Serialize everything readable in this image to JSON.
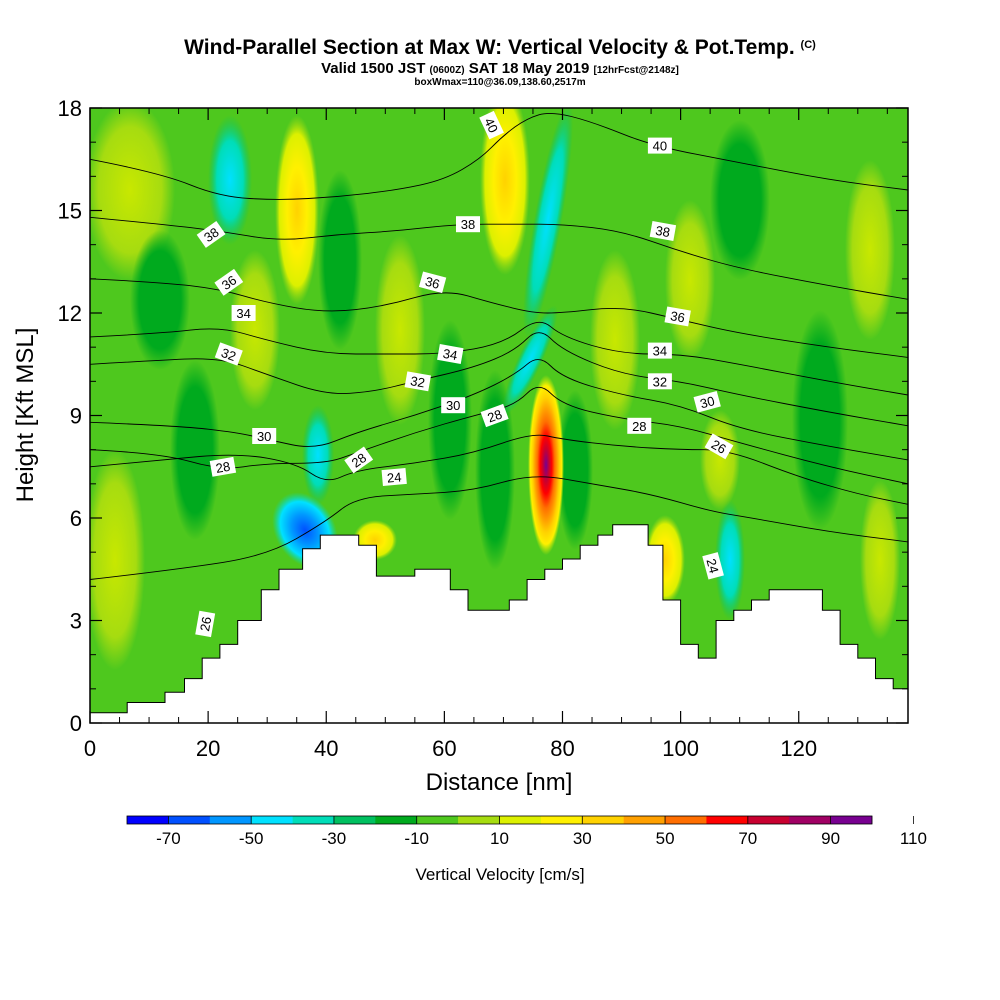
{
  "header": {
    "title": "Wind-Parallel Section at Max W: Vertical Velocity & Pot.Temp.",
    "title_mark": "(C)",
    "subtitle_a": "Valid 1500 JST",
    "subtitle_b": "(0600Z)",
    "subtitle_c": "SAT 18 May 2019",
    "subtitle_d": "[12hrFcst@2148z]",
    "subtitle2": "boxWmax=110@36.09,138.60,2517m"
  },
  "chart_data": {
    "type": "heatmap",
    "xlabel": "Distance [nm]",
    "ylabel": "Height [Kft MSL]",
    "xlim": [
      0,
      138.5
    ],
    "ylim": [
      0,
      18
    ],
    "xticks": [
      "0",
      "20",
      "40",
      "60",
      "80",
      "100",
      "120"
    ],
    "xtick_values": [
      0,
      20,
      40,
      60,
      80,
      100,
      120
    ],
    "yticks": [
      "0",
      "3",
      "6",
      "9",
      "12",
      "15",
      "18"
    ],
    "ytick_values": [
      0,
      3,
      6,
      9,
      12,
      15,
      18
    ],
    "colorbar": {
      "label": "Vertical Velocity [cm/s]",
      "tick_labels": [
        "-70",
        "-50",
        "-30",
        "-10",
        "10",
        "30",
        "50",
        "70",
        "90",
        "110"
      ],
      "colors": [
        "#0000ff",
        "#0050ff",
        "#0096ff",
        "#00e1ff",
        "#00ddb8",
        "#00c060",
        "#00aa1e",
        "#4ec81e",
        "#a6dc10",
        "#dcf000",
        "#fff000",
        "#ffd200",
        "#ffa000",
        "#ff6e00",
        "#ff0000",
        "#c80030",
        "#a00064",
        "#780090"
      ]
    },
    "terrain_kft": [
      [
        0,
        0.3
      ],
      [
        6.3,
        0.3
      ],
      [
        6.3,
        0.6
      ],
      [
        12.7,
        0.6
      ],
      [
        12.7,
        0.9
      ],
      [
        16,
        0.9
      ],
      [
        16,
        1.3
      ],
      [
        19,
        1.3
      ],
      [
        19,
        1.9
      ],
      [
        22,
        1.9
      ],
      [
        22,
        2.3
      ],
      [
        25,
        2.3
      ],
      [
        25,
        3
      ],
      [
        29,
        3
      ],
      [
        29,
        3.9
      ],
      [
        32,
        3.9
      ],
      [
        32,
        4.5
      ],
      [
        36,
        4.5
      ],
      [
        36,
        5.1
      ],
      [
        39,
        5.1
      ],
      [
        39,
        5.5
      ],
      [
        40.5,
        5.5
      ],
      [
        40.5,
        5.5
      ],
      [
        45.5,
        5.5
      ],
      [
        45.5,
        5.2
      ],
      [
        48.5,
        5.2
      ],
      [
        48.5,
        4.3
      ],
      [
        55,
        4.3
      ],
      [
        55,
        4.5
      ],
      [
        61,
        4.5
      ],
      [
        61,
        3.9
      ],
      [
        64,
        3.9
      ],
      [
        64,
        3.3
      ],
      [
        71,
        3.3
      ],
      [
        71,
        3.6
      ],
      [
        74,
        3.6
      ],
      [
        74,
        4.2
      ],
      [
        77,
        4.2
      ],
      [
        77,
        4.5
      ],
      [
        80,
        4.5
      ],
      [
        80,
        4.8
      ],
      [
        83,
        4.8
      ],
      [
        83,
        5.2
      ],
      [
        86,
        5.2
      ],
      [
        86,
        5.5
      ],
      [
        88.5,
        5.5
      ],
      [
        88.5,
        5.8
      ],
      [
        94.5,
        5.8
      ],
      [
        94.5,
        5.2
      ],
      [
        97,
        5.2
      ],
      [
        97,
        3.6
      ],
      [
        100,
        3.6
      ],
      [
        100,
        2.3
      ],
      [
        103,
        2.3
      ],
      [
        103,
        1.9
      ],
      [
        106,
        1.9
      ],
      [
        106,
        3
      ],
      [
        109,
        3
      ],
      [
        109,
        3.3
      ],
      [
        112,
        3.3
      ],
      [
        112,
        3.6
      ],
      [
        115,
        3.6
      ],
      [
        115,
        3.9
      ],
      [
        124,
        3.9
      ],
      [
        124,
        3.3
      ],
      [
        127,
        3.3
      ],
      [
        127,
        2.3
      ],
      [
        130,
        2.3
      ],
      [
        130,
        1.9
      ],
      [
        133,
        1.9
      ],
      [
        133,
        1.3
      ],
      [
        136,
        1.3
      ],
      [
        136,
        1
      ],
      [
        138.5,
        1
      ]
    ],
    "isentropes": [
      {
        "level": 24,
        "label": "24",
        "points": [
          [
            0,
            4.2
          ],
          [
            15,
            4.5
          ],
          [
            30,
            4.9
          ],
          [
            40,
            5.9
          ],
          [
            45,
            6.6
          ],
          [
            55,
            6.7
          ],
          [
            65,
            6.8
          ],
          [
            75,
            7.3
          ],
          [
            85,
            7.0
          ],
          [
            95,
            6.7
          ],
          [
            105,
            6.2
          ],
          [
            112,
            6.0
          ],
          [
            125,
            5.6
          ],
          [
            138.5,
            5.3
          ]
        ]
      },
      {
        "level": 26,
        "label": "26",
        "points": [
          [
            0,
            7.5
          ],
          [
            12,
            7.7
          ],
          [
            25,
            7.9
          ],
          [
            35,
            7.6
          ],
          [
            40,
            7.0
          ],
          [
            45,
            7.4
          ],
          [
            55,
            7.6
          ],
          [
            65,
            7.9
          ],
          [
            75,
            8.5
          ],
          [
            80,
            8.3
          ],
          [
            90,
            8.1
          ],
          [
            100,
            8.0
          ],
          [
            108,
            8.0
          ],
          [
            120,
            7.2
          ],
          [
            130,
            6.7
          ],
          [
            138.5,
            6.4
          ]
        ]
      },
      {
        "level": 28,
        "label": "28",
        "points": [
          [
            0,
            8.0
          ],
          [
            12,
            7.9
          ],
          [
            22,
            7.4
          ],
          [
            30,
            7.6
          ],
          [
            40,
            7.6
          ],
          [
            45,
            7.9
          ],
          [
            55,
            8.5
          ],
          [
            65,
            9.0
          ],
          [
            72,
            9.3
          ],
          [
            76,
            10.0
          ],
          [
            80,
            9.3
          ],
          [
            90,
            8.9
          ],
          [
            100,
            8.7
          ],
          [
            110,
            8.2
          ],
          [
            125,
            7.5
          ],
          [
            138.5,
            7.0
          ]
        ]
      },
      {
        "level": 30,
        "label": "30",
        "points": [
          [
            0,
            8.8
          ],
          [
            15,
            8.7
          ],
          [
            25,
            8.5
          ],
          [
            30,
            8.3
          ],
          [
            38,
            8.0
          ],
          [
            45,
            8.5
          ],
          [
            55,
            9.0
          ],
          [
            65,
            9.6
          ],
          [
            72,
            10.2
          ],
          [
            76,
            10.8
          ],
          [
            80,
            10.1
          ],
          [
            90,
            9.6
          ],
          [
            100,
            9.3
          ],
          [
            110,
            8.6
          ],
          [
            125,
            8.1
          ],
          [
            138.5,
            7.7
          ]
        ]
      },
      {
        "level": 32,
        "label": "32",
        "points": [
          [
            0,
            10.5
          ],
          [
            10,
            10.6
          ],
          [
            22,
            10.7
          ],
          [
            30,
            10.2
          ],
          [
            40,
            9.6
          ],
          [
            48,
            9.7
          ],
          [
            55,
            10.0
          ],
          [
            65,
            10.4
          ],
          [
            72,
            10.9
          ],
          [
            76,
            11.6
          ],
          [
            80,
            10.9
          ],
          [
            90,
            10.2
          ],
          [
            100,
            10.0
          ],
          [
            110,
            9.6
          ],
          [
            125,
            9.1
          ],
          [
            138.5,
            8.7
          ]
        ]
      },
      {
        "level": 34,
        "label": "34",
        "points": [
          [
            0,
            11.3
          ],
          [
            12,
            11.4
          ],
          [
            22,
            11.6
          ],
          [
            30,
            11.2
          ],
          [
            40,
            10.8
          ],
          [
            50,
            10.8
          ],
          [
            60,
            10.8
          ],
          [
            70,
            11.1
          ],
          [
            76,
            11.9
          ],
          [
            80,
            11.3
          ],
          [
            90,
            10.8
          ],
          [
            100,
            10.8
          ],
          [
            110,
            10.5
          ],
          [
            125,
            10.0
          ],
          [
            138.5,
            9.6
          ]
        ]
      },
      {
        "level": 36,
        "label": "36",
        "points": [
          [
            0,
            13.0
          ],
          [
            12,
            12.9
          ],
          [
            22,
            12.7
          ],
          [
            30,
            12.3
          ],
          [
            40,
            12.0
          ],
          [
            50,
            12.2
          ],
          [
            60,
            12.7
          ],
          [
            68,
            12.3
          ],
          [
            75,
            12.0
          ],
          [
            80,
            12.0
          ],
          [
            90,
            12.2
          ],
          [
            100,
            11.8
          ],
          [
            110,
            11.4
          ],
          [
            125,
            11.0
          ],
          [
            138.5,
            10.7
          ]
        ]
      },
      {
        "level": 38,
        "label": "38",
        "points": [
          [
            0,
            14.8
          ],
          [
            12,
            14.6
          ],
          [
            22,
            14.4
          ],
          [
            32,
            14.1
          ],
          [
            42,
            14.3
          ],
          [
            52,
            14.4
          ],
          [
            62,
            14.6
          ],
          [
            72,
            14.6
          ],
          [
            80,
            14.6
          ],
          [
            90,
            14.4
          ],
          [
            100,
            13.8
          ],
          [
            110,
            13.3
          ],
          [
            125,
            12.8
          ],
          [
            138.5,
            12.4
          ]
        ]
      },
      {
        "level": 40,
        "label": "40",
        "points": [
          [
            0,
            16.5
          ],
          [
            12,
            16.1
          ],
          [
            22,
            15.4
          ],
          [
            32,
            15.3
          ],
          [
            42,
            15.4
          ],
          [
            52,
            15.6
          ],
          [
            60,
            15.9
          ],
          [
            66,
            16.5
          ],
          [
            70,
            17.2
          ],
          [
            74,
            17.7
          ],
          [
            78,
            17.9
          ],
          [
            85,
            17.6
          ],
          [
            95,
            16.9
          ],
          [
            110,
            16.4
          ],
          [
            125,
            15.9
          ],
          [
            138.5,
            15.6
          ]
        ]
      }
    ],
    "isentrope_labels": [
      {
        "label": "26",
        "x": 19.5,
        "y": 2.9,
        "rot": -80
      },
      {
        "label": "28",
        "x": 22.5,
        "y": 7.5,
        "rot": -10
      },
      {
        "label": "30",
        "x": 29.5,
        "y": 8.4,
        "rot": 0
      },
      {
        "label": "32",
        "x": 23.5,
        "y": 10.8,
        "rot": 20
      },
      {
        "label": "34",
        "x": 26.0,
        "y": 12.0,
        "rot": 0
      },
      {
        "label": "36",
        "x": 23.5,
        "y": 12.9,
        "rot": -35
      },
      {
        "label": "38",
        "x": 20.5,
        "y": 14.3,
        "rot": -35
      },
      {
        "label": "28",
        "x": 45.5,
        "y": 7.7,
        "rot": -35
      },
      {
        "label": "24",
        "x": 51.5,
        "y": 7.2,
        "rot": -5
      },
      {
        "label": "32",
        "x": 55.5,
        "y": 10.0,
        "rot": 10
      },
      {
        "label": "30",
        "x": 61.5,
        "y": 9.3,
        "rot": 0
      },
      {
        "label": "28",
        "x": 68.5,
        "y": 9.0,
        "rot": -20
      },
      {
        "label": "34",
        "x": 61.0,
        "y": 10.8,
        "rot": 10
      },
      {
        "label": "36",
        "x": 58.0,
        "y": 12.9,
        "rot": 15
      },
      {
        "label": "38",
        "x": 64.0,
        "y": 14.6,
        "rot": 0
      },
      {
        "label": "40",
        "x": 68.0,
        "y": 17.5,
        "rot": 65
      },
      {
        "label": "40",
        "x": 96.5,
        "y": 16.9,
        "rot": 0
      },
      {
        "label": "38",
        "x": 97.0,
        "y": 14.4,
        "rot": 10
      },
      {
        "label": "36",
        "x": 99.5,
        "y": 11.9,
        "rot": 10
      },
      {
        "label": "34",
        "x": 96.5,
        "y": 10.9,
        "rot": 0
      },
      {
        "label": "32",
        "x": 96.5,
        "y": 10.0,
        "rot": 0
      },
      {
        "label": "30",
        "x": 104.5,
        "y": 9.4,
        "rot": -15
      },
      {
        "label": "28",
        "x": 93.0,
        "y": 8.7,
        "rot": 0
      },
      {
        "label": "26",
        "x": 106.5,
        "y": 8.1,
        "rot": 30
      },
      {
        "label": "24",
        "x": 105.5,
        "y": 4.6,
        "rot": 75
      }
    ]
  }
}
